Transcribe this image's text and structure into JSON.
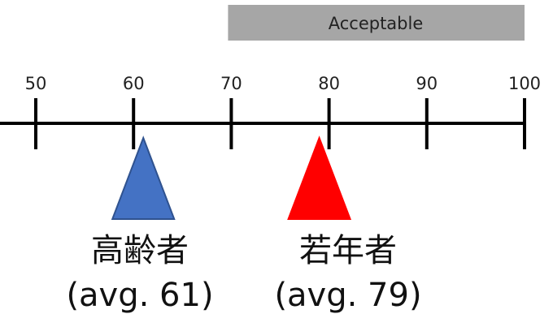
{
  "scale": {
    "min": 50,
    "max": 100,
    "ticks": [
      50,
      60,
      70,
      80,
      90,
      100
    ],
    "tick_labels": [
      "50",
      "60",
      "70",
      "80",
      "90",
      "100"
    ]
  },
  "band": {
    "label": "Acceptable",
    "from": 70,
    "to": 100,
    "color": "#a6a6a6"
  },
  "groups": [
    {
      "name": "高齢者",
      "avg_label": "(avg. 61)",
      "value": 61,
      "color": "#4472c4",
      "stroke": "#2f528f"
    },
    {
      "name": "若年者",
      "avg_label": "(avg. 79)",
      "value": 79,
      "color": "#ff0000",
      "stroke": "#ff0000"
    }
  ]
}
